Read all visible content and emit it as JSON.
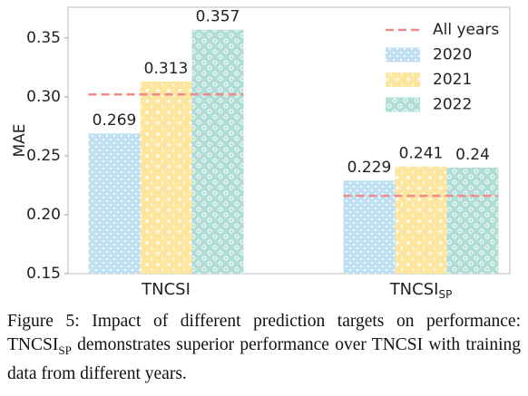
{
  "chart_data": {
    "type": "bar",
    "ylabel": "MAE",
    "categories": [
      "TNCSI",
      "TNCSI"
    ],
    "category_subscripts": [
      null,
      "SP"
    ],
    "series": [
      {
        "name": "2020",
        "color": "#bfe0f2",
        "values": [
          0.269,
          0.229
        ]
      },
      {
        "name": "2021",
        "color": "#fde6a0",
        "values": [
          0.313,
          0.241
        ]
      },
      {
        "name": "2022",
        "color": "#b0ddd6",
        "values": [
          0.357,
          0.24
        ]
      }
    ],
    "reference": {
      "name": "All years",
      "color": "#f08a8a",
      "values": [
        0.302,
        0.216
      ]
    },
    "ylim": [
      0.15,
      0.376
    ],
    "yticks": [
      0.15,
      {
        "value": 0.2,
        "label": "0.20"
      },
      0.25,
      {
        "value": 0.3,
        "label": "0.30"
      },
      0.35
    ],
    "legend": "upper right"
  },
  "caption": [
    "Figure 5: Impact of different prediction targets on performance: TNCSI",
    "SP",
    " demonstrates superior performance over TNCSI with training data from different years."
  ]
}
